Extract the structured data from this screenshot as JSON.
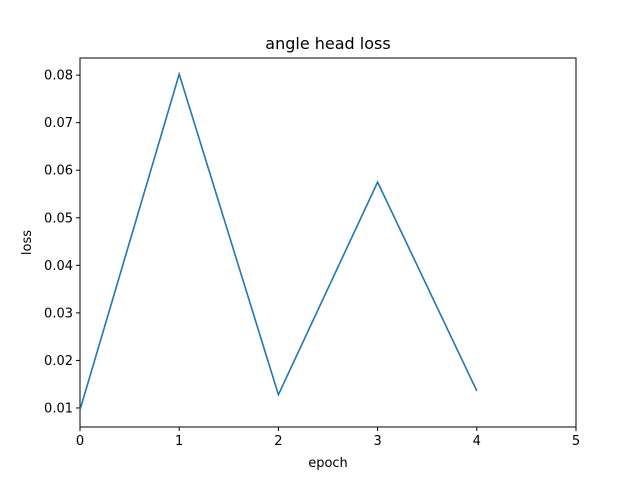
{
  "chart_data": {
    "type": "line",
    "title": "angle head loss",
    "xlabel": "epoch",
    "ylabel": "loss",
    "xlim": [
      0,
      5
    ],
    "ylim": [
      0.006,
      0.0836
    ],
    "xticks": [
      "0",
      "1",
      "2",
      "3",
      "4",
      "5"
    ],
    "yticks": [
      "0.01",
      "0.02",
      "0.03",
      "0.04",
      "0.05",
      "0.06",
      "0.07",
      "0.08"
    ],
    "grid": false,
    "series": [
      {
        "color": "#1f77b4",
        "x": [
          0,
          1,
          2,
          3,
          4
        ],
        "y": [
          0.0096,
          0.0802,
          0.0128,
          0.0575,
          0.0136
        ]
      }
    ]
  }
}
